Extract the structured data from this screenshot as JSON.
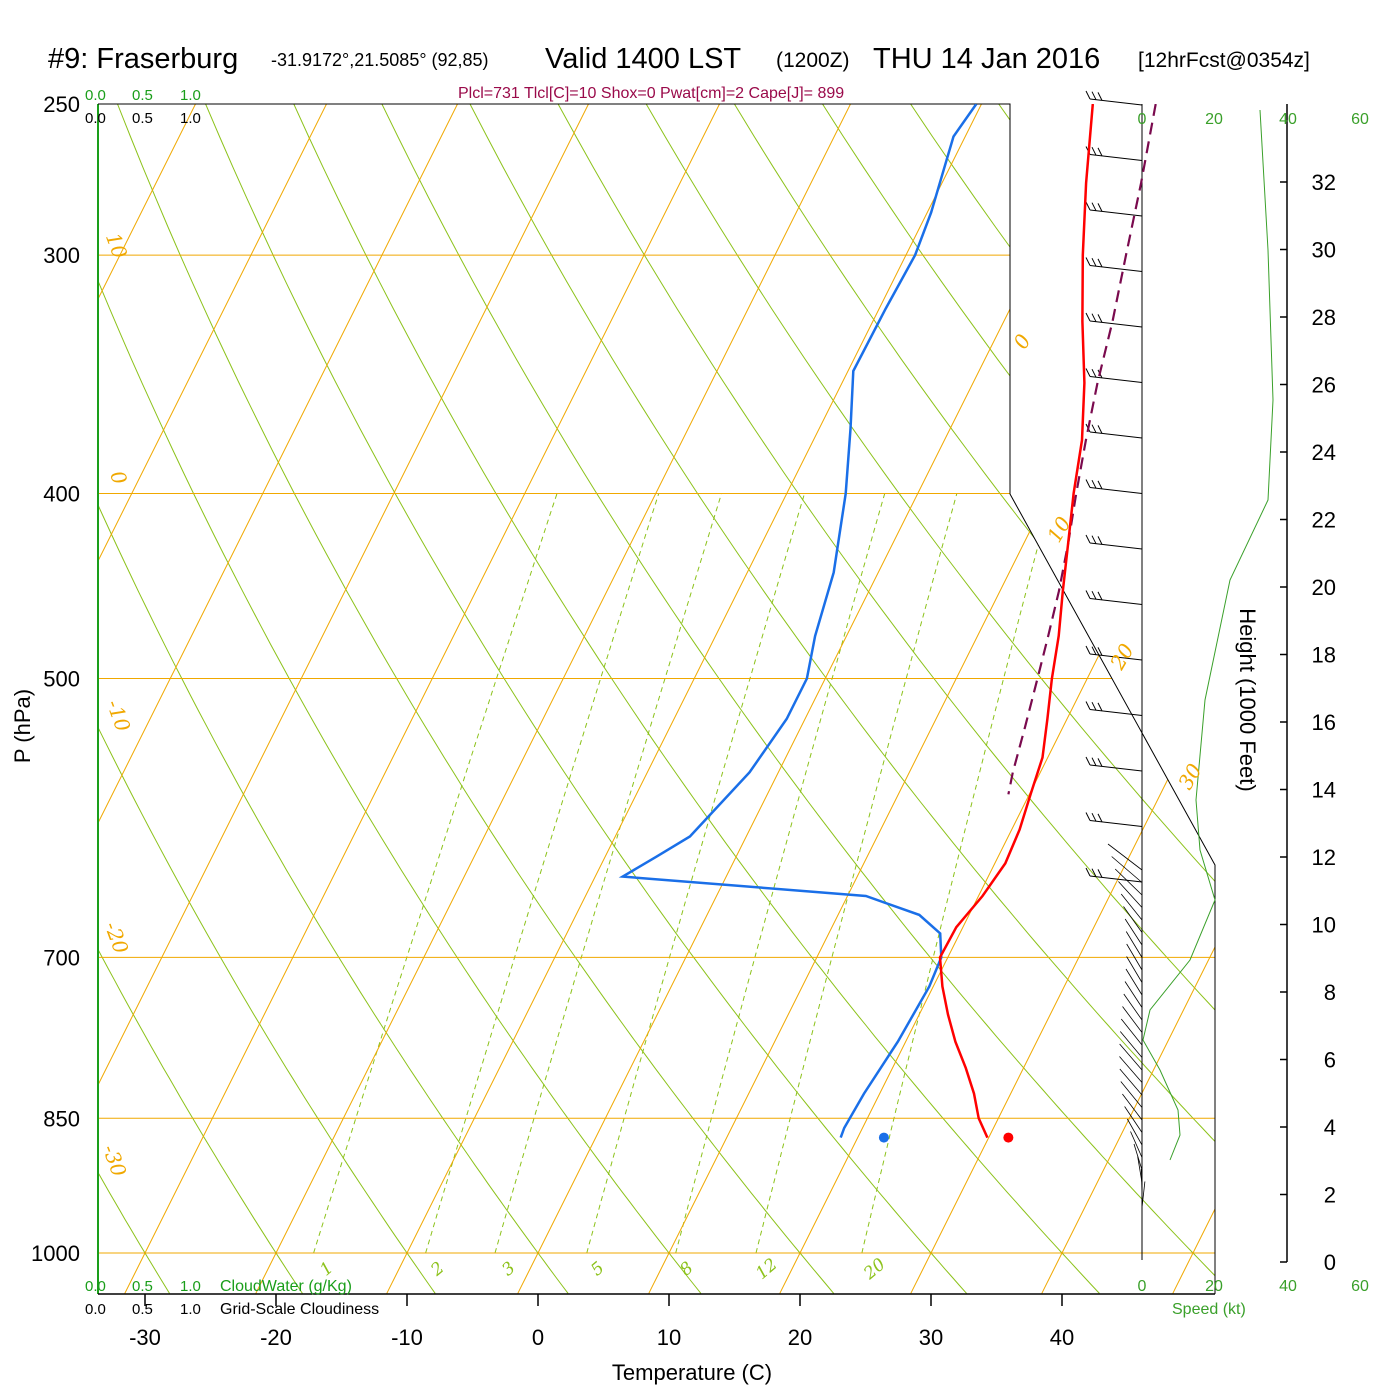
{
  "header": {
    "station": "#9: Fraserburg",
    "coords": "-31.9172°,21.5085° (92,85)",
    "valid": "Valid 1400 LST",
    "zulu": "(1200Z)",
    "date": "THU 14 Jan 2016",
    "forecast": "[12hrFcst@0354z]"
  },
  "indices": "Plcl=731 Tlcl[C]=10 Shox=0 Pwat[cm]=2 Cape[J]= 899",
  "colors": {
    "temperature": "#ff0000",
    "dewpoint": "#1a6fe8",
    "parcel": "#7a0a4e",
    "isobar_isotherm": "#f0a800",
    "adiabat": "#8cc21a",
    "mixing_ratio": "#8cc21a",
    "cloud_scale": "#1a9e1a",
    "indices": "#9a0a4a",
    "wind_speed": "#3aa02a"
  },
  "cloud_scales": {
    "top_green": [
      "0.0",
      "0.5",
      "1.0"
    ],
    "top_black": [
      "0.0",
      "0.5",
      "1.0"
    ],
    "bottom_green": [
      "0.0",
      "0.5",
      "1.0"
    ],
    "bottom_black": [
      "0.0",
      "0.5",
      "1.0"
    ],
    "cloudwater_label": "CloudWater (g/Kg)",
    "cloudiness_label": "Grid-Scale Cloudiness"
  },
  "chart_data": {
    "type": "line",
    "subtype": "skew-T log-P sounding",
    "xlabel": "Temperature (C)",
    "ylabel": "P (hPa)",
    "y2label": "Height (1000 Feet)",
    "xticks": [
      -30,
      -20,
      -10,
      0,
      10,
      20,
      30,
      40
    ],
    "yticks": [
      250,
      300,
      400,
      500,
      700,
      850,
      1000
    ],
    "xlim": [
      -34,
      36
    ],
    "ylim": [
      1000,
      250
    ],
    "y_scale": "log",
    "height_ticks": [
      0,
      2,
      4,
      6,
      8,
      10,
      12,
      14,
      16,
      18,
      20,
      22,
      24,
      26,
      28,
      30,
      32
    ],
    "isotherm_labels": [
      "10",
      "0",
      "-10",
      "-20",
      "-30",
      "0",
      "10",
      "20",
      "30"
    ],
    "mixing_ratio_labels": [
      "1",
      "2",
      "3",
      "5",
      "8",
      "12",
      "20"
    ],
    "wind_speed_axis": {
      "ticks": [
        "0",
        "20",
        "40",
        "60"
      ],
      "label": "Speed (kt)"
    },
    "series": [
      {
        "key": "temperature",
        "points": [
          [
            -1.5,
            250
          ],
          [
            1,
            275
          ],
          [
            3.5,
            300
          ],
          [
            6,
            325
          ],
          [
            8.5,
            350
          ],
          [
            10.5,
            375
          ],
          [
            11.9,
            400
          ],
          [
            13.4,
            425
          ],
          [
            14.8,
            450
          ],
          [
            16.2,
            475
          ],
          [
            17.3,
            500
          ],
          [
            18.5,
            525
          ],
          [
            19.6,
            550
          ],
          [
            20.1,
            575
          ],
          [
            20.6,
            600
          ],
          [
            20.8,
            625
          ],
          [
            20.3,
            650
          ],
          [
            19.5,
            675
          ],
          [
            19.4,
            700
          ],
          [
            20.7,
            725
          ],
          [
            22.2,
            750
          ],
          [
            23.8,
            775
          ],
          [
            25.6,
            800
          ],
          [
            27.2,
            825
          ],
          [
            28.5,
            850
          ],
          [
            29.9,
            870
          ]
        ]
      },
      {
        "key": "dewpoint",
        "points": [
          [
            -10.4,
            250
          ],
          [
            -10.9,
            260
          ],
          [
            -9.7,
            285
          ],
          [
            -9.3,
            300
          ],
          [
            -9.5,
            320
          ],
          [
            -9.6,
            345
          ],
          [
            -7.6,
            370
          ],
          [
            -5.5,
            400
          ],
          [
            -3.4,
            440
          ],
          [
            -2.4,
            475
          ],
          [
            -1.4,
            500
          ],
          [
            -1.4,
            525
          ],
          [
            -2.2,
            560
          ],
          [
            -4.3,
            605
          ],
          [
            -6.1,
            620
          ],
          [
            -7.9,
            635
          ],
          [
            11.4,
            650
          ],
          [
            16.2,
            665
          ],
          [
            18.5,
            680
          ],
          [
            19.5,
            700
          ],
          [
            19.7,
            725
          ],
          [
            19.4,
            775
          ],
          [
            18.8,
            825
          ],
          [
            18.6,
            860
          ],
          [
            18.7,
            870
          ]
        ]
      },
      {
        "key": "parcel",
        "points": [
          [
            3.3,
            250
          ],
          [
            5.2,
            275
          ],
          [
            6.8,
            300
          ],
          [
            8.3,
            325
          ],
          [
            9.5,
            350
          ],
          [
            10.8,
            375
          ],
          [
            12.1,
            400
          ],
          [
            13.4,
            425
          ],
          [
            14.5,
            450
          ],
          [
            15.4,
            475
          ],
          [
            16.2,
            500
          ],
          [
            17.1,
            530
          ],
          [
            17.9,
            560
          ],
          [
            18.4,
            575
          ]
        ]
      }
    ],
    "surface_points": [
      {
        "key": "temperature",
        "t": 31.5,
        "p": 870
      },
      {
        "key": "dewpoint",
        "t": 22.0,
        "p": 870
      }
    ],
    "grid": true,
    "legend": "none"
  }
}
